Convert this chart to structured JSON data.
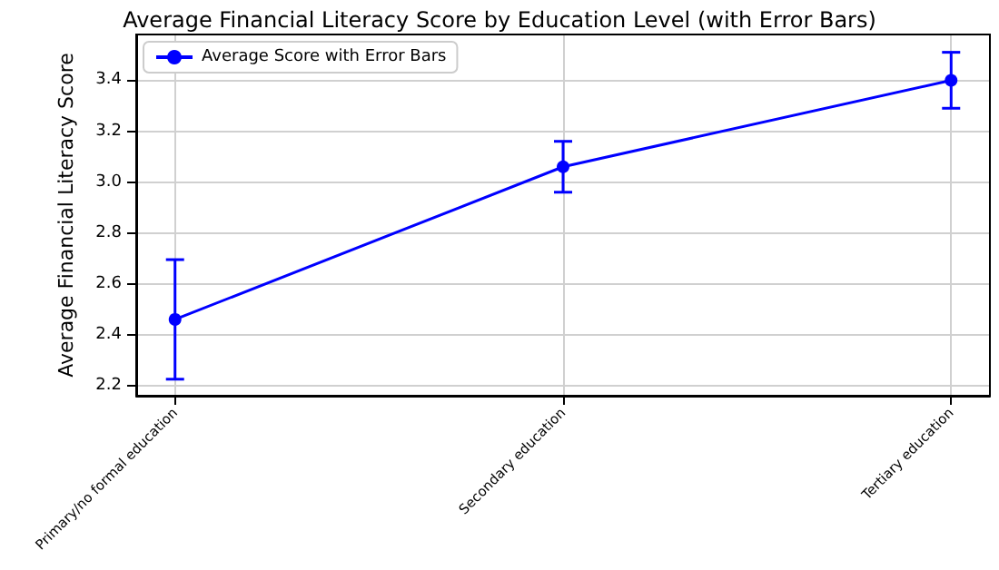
{
  "chart_data": {
    "type": "line",
    "title": "Average Financial Literacy Score by Education Level (with Error Bars)",
    "ylabel": "Average Financial Literacy Score",
    "categories": [
      "Primary/no formal education",
      "Secondary education",
      "Tertiary education"
    ],
    "series": [
      {
        "name": "Average Score with Error Bars",
        "color": "#0000ff",
        "values": [
          2.46,
          3.06,
          3.4
        ],
        "errors": [
          0.235,
          0.1,
          0.11
        ]
      }
    ],
    "ylim": [
      2.16,
      3.58
    ],
    "yticks": [
      2.2,
      2.4,
      2.6,
      2.8,
      {
        "value": 3,
        "label": "3.0"
      },
      3.2,
      3.4
    ],
    "grid": true,
    "legend": "top left",
    "marker": "circle",
    "line_style": "solid"
  }
}
